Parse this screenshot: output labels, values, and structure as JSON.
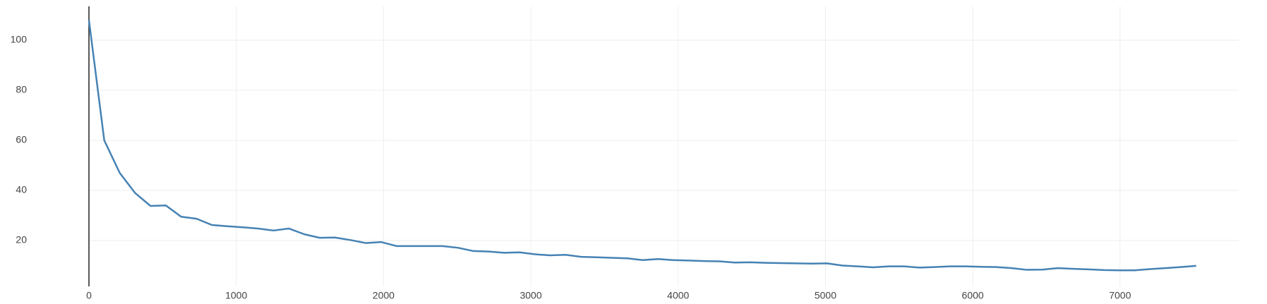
{
  "chart_data": {
    "type": "line",
    "x": [
      0,
      104,
      209,
      313,
      418,
      522,
      626,
      731,
      835,
      940,
      1044,
      1148,
      1253,
      1357,
      1462,
      1566,
      1670,
      1775,
      1879,
      1984,
      2088,
      2192,
      2297,
      2401,
      2506,
      2610,
      2714,
      2819,
      2923,
      3028,
      3132,
      3236,
      3341,
      3445,
      3550,
      3654,
      3758,
      3863,
      3967,
      4072,
      4176,
      4280,
      4385,
      4489,
      4594,
      4698,
      4802,
      4907,
      5011,
      5116,
      5220,
      5324,
      5429,
      5533,
      5638,
      5742,
      5846,
      5951,
      6055,
      6160,
      6264,
      6368,
      6473,
      6577,
      6682,
      6786,
      6890,
      6995,
      7099,
      7204,
      7308,
      7412,
      7517
    ],
    "values": [
      108,
      60,
      47,
      39,
      33.8,
      34,
      29.5,
      28.7,
      26.2,
      25.7,
      25.3,
      24.8,
      24,
      24.8,
      22.5,
      21.1,
      21.2,
      20.2,
      19,
      19.4,
      17.8,
      17.8,
      17.8,
      17.8,
      17.1,
      15.8,
      15.6,
      15.1,
      15.3,
      14.5,
      14.1,
      14.3,
      13.5,
      13.3,
      13.1,
      12.9,
      12.2,
      12.6,
      12.2,
      12,
      11.8,
      11.7,
      11.2,
      11.3,
      11.1,
      11,
      10.9,
      10.8,
      10.9,
      10,
      9.7,
      9.3,
      9.7,
      9.7,
      9.2,
      9.4,
      9.7,
      9.7,
      9.5,
      9.4,
      9,
      8.3,
      8.4,
      9,
      8.7,
      8.5,
      8.2,
      8.1,
      8.1,
      8.6,
      9,
      9.4,
      9.9
    ],
    "color": "#4682b4",
    "xlim": [
      0,
      7806
    ],
    "xticks": [
      0,
      1000,
      2000,
      3000,
      4000,
      5000,
      6000,
      7000
    ],
    "ylim": [
      1.7,
      113.5
    ],
    "yticks": [
      20,
      40,
      60,
      80,
      100
    ],
    "grid": true
  }
}
